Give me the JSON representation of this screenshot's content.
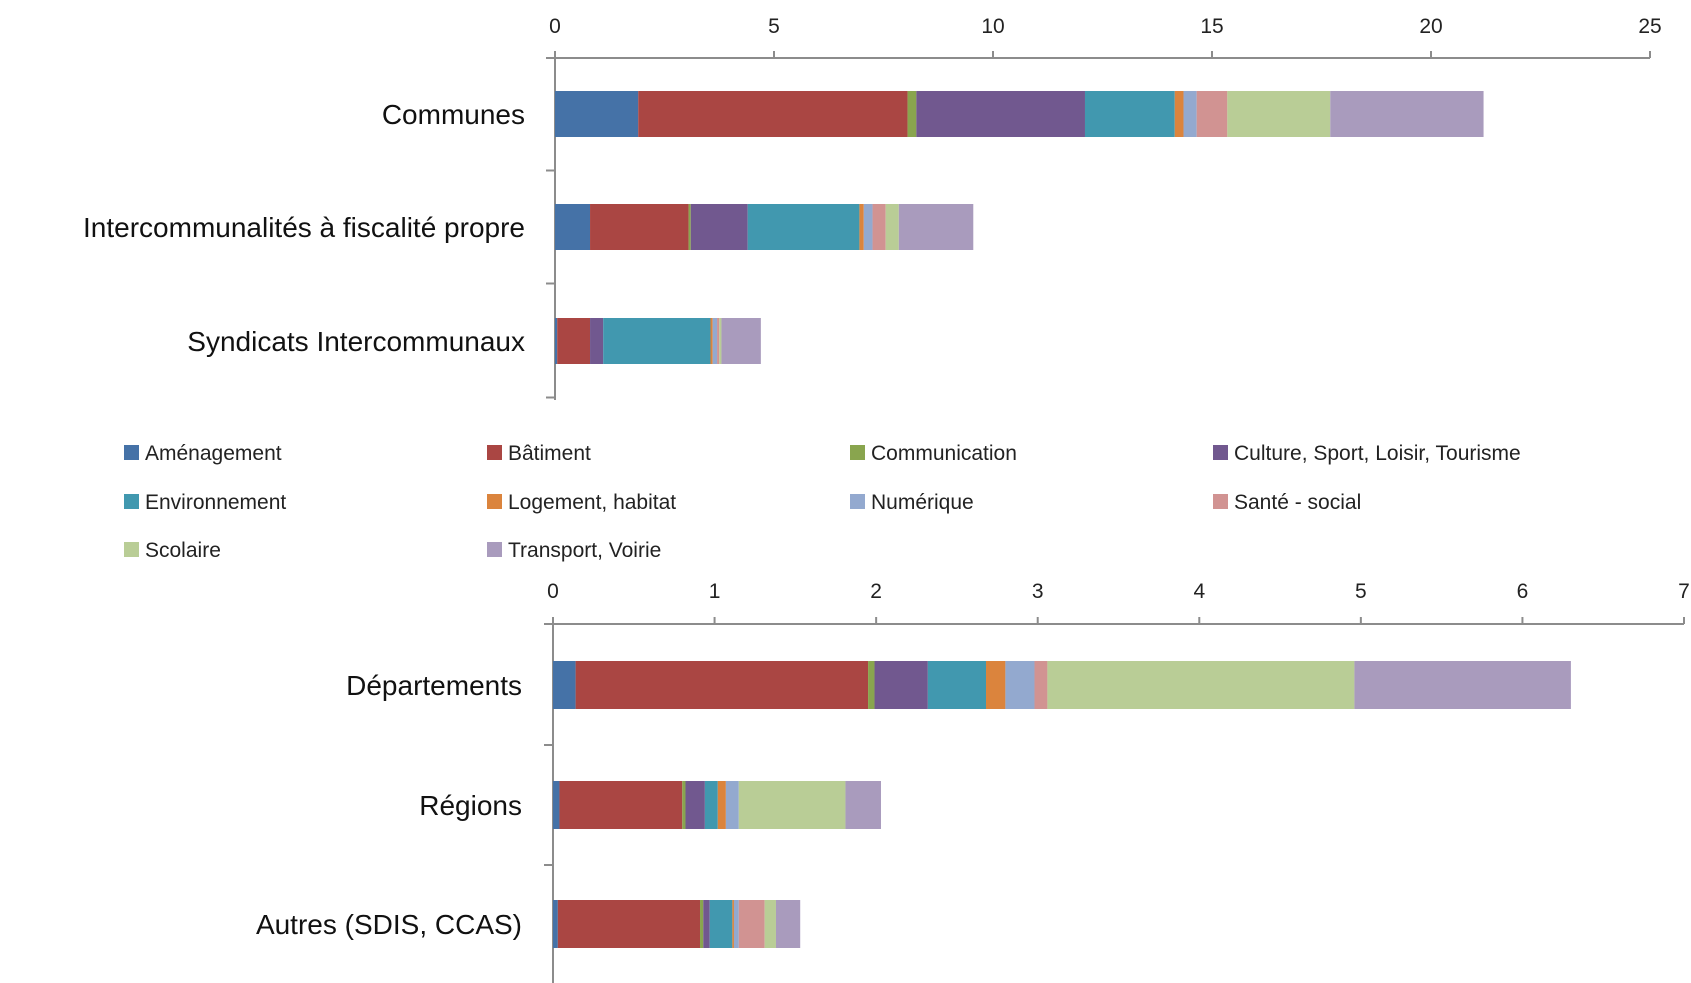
{
  "series_names": [
    "Aménagement",
    "Bâtiment",
    "Communication",
    "Culture, Sport, Loisir, Tourisme",
    "Environnement",
    "Logement, habitat",
    "Numérique",
    "Santé - social",
    "Scolaire",
    "Transport, Voirie"
  ],
  "colors": [
    "#4572A7",
    "#AA4643",
    "#89A54E",
    "#71588F",
    "#4198AF",
    "#DB843D",
    "#93A9CF",
    "#D19392",
    "#B9CD96",
    "#A99BBD"
  ],
  "chart_data": [
    {
      "type": "bar",
      "orientation": "horizontal",
      "stacked": true,
      "categories": [
        "Communes",
        "Intercommunalités à fiscalité propre",
        "Syndicats Intercommunaux"
      ],
      "xlim": [
        0,
        25
      ],
      "xticks": [
        0,
        5,
        10,
        15,
        20,
        25
      ],
      "x_axis_position": "top",
      "grid": false,
      "series": [
        {
          "name": "Aménagement",
          "values": [
            1.9,
            0.8,
            0.05
          ]
        },
        {
          "name": "Bâtiment",
          "values": [
            6.15,
            2.25,
            0.75
          ]
        },
        {
          "name": "Communication",
          "values": [
            0.2,
            0.05,
            0.0
          ]
        },
        {
          "name": "Culture, Sport, Loisir, Tourisme",
          "values": [
            3.85,
            1.3,
            0.3
          ]
        },
        {
          "name": "Environnement",
          "values": [
            2.05,
            2.55,
            2.45
          ]
        },
        {
          "name": "Logement, habitat",
          "values": [
            0.2,
            0.1,
            0.05
          ]
        },
        {
          "name": "Numérique",
          "values": [
            0.3,
            0.2,
            0.1
          ]
        },
        {
          "name": "Santé - social",
          "values": [
            0.7,
            0.3,
            0.05
          ]
        },
        {
          "name": "Scolaire",
          "values": [
            2.35,
            0.3,
            0.05
          ]
        },
        {
          "name": "Transport, Voirie",
          "values": [
            3.5,
            1.7,
            0.9
          ]
        }
      ]
    },
    {
      "type": "bar",
      "orientation": "horizontal",
      "stacked": true,
      "categories": [
        "Départements",
        "Régions",
        "Autres (SDIS, CCAS)"
      ],
      "xlim": [
        0,
        7
      ],
      "xticks": [
        0,
        1,
        2,
        3,
        4,
        5,
        6,
        7
      ],
      "x_axis_position": "top",
      "grid": false,
      "series": [
        {
          "name": "Aménagement",
          "values": [
            0.14,
            0.04,
            0.03
          ]
        },
        {
          "name": "Bâtiment",
          "values": [
            1.81,
            0.76,
            0.88
          ]
        },
        {
          "name": "Communication",
          "values": [
            0.04,
            0.02,
            0.02
          ]
        },
        {
          "name": "Culture, Sport, Loisir, Tourisme",
          "values": [
            0.33,
            0.12,
            0.04
          ]
        },
        {
          "name": "Environnement",
          "values": [
            0.36,
            0.08,
            0.14
          ]
        },
        {
          "name": "Logement, habitat",
          "values": [
            0.12,
            0.05,
            0.01
          ]
        },
        {
          "name": "Numérique",
          "values": [
            0.18,
            0.08,
            0.03
          ]
        },
        {
          "name": "Santé - social",
          "values": [
            0.08,
            0.0,
            0.16
          ]
        },
        {
          "name": "Scolaire",
          "values": [
            1.9,
            0.66,
            0.07
          ]
        },
        {
          "name": "Transport, Voirie",
          "values": [
            1.34,
            0.22,
            0.15
          ]
        }
      ]
    }
  ]
}
